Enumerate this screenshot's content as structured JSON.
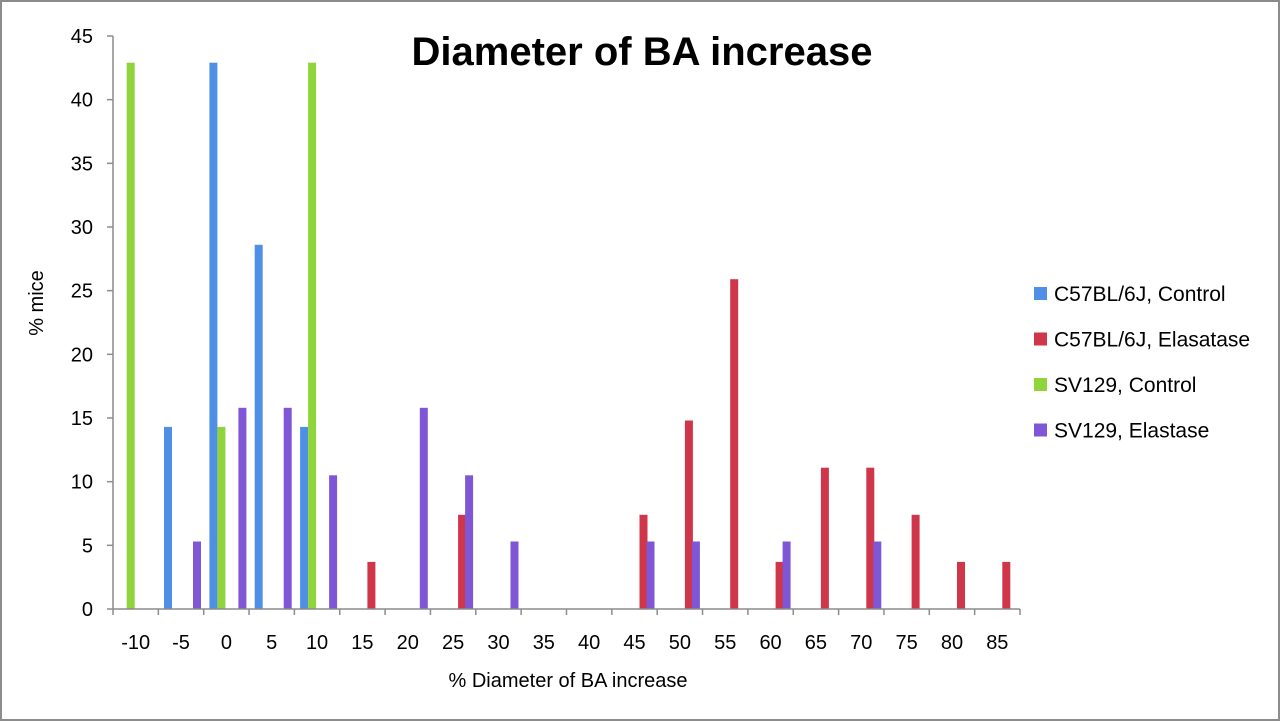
{
  "chart_data": {
    "type": "bar",
    "title": "Diameter of BA increase",
    "xlabel": "% Diameter of BA increase",
    "ylabel": "% mice",
    "ylim": [
      0,
      45
    ],
    "yticks": [
      "0",
      "5",
      "10",
      "15",
      "20",
      "25",
      "30",
      "35",
      "40",
      "45"
    ],
    "categories": [
      "-10",
      "-5",
      "0",
      "5",
      "10",
      "15",
      "20",
      "25",
      "30",
      "35",
      "40",
      "45",
      "50",
      "55",
      "60",
      "65",
      "70",
      "75",
      "80",
      "85"
    ],
    "grid": false,
    "legend_position": "right",
    "series": [
      {
        "name": "C57BL/6J, Control",
        "color": "#4f8fe6",
        "values": [
          0,
          14.3,
          42.9,
          28.6,
          14.3,
          0,
          0,
          0,
          0,
          0,
          0,
          0,
          0,
          0,
          0,
          0,
          0,
          0,
          0,
          0
        ]
      },
      {
        "name": "C57BL/6J, Elasatase",
        "color": "#d0364a",
        "values": [
          0,
          0,
          0,
          0,
          0,
          3.7,
          0,
          7.4,
          0,
          0,
          0,
          7.4,
          14.8,
          25.9,
          3.7,
          11.1,
          11.1,
          7.4,
          3.7,
          3.7
        ]
      },
      {
        "name": "SV129, Control",
        "color": "#8ed43a",
        "values": [
          42.9,
          0,
          14.3,
          0,
          42.9,
          0,
          0,
          0,
          0,
          0,
          0,
          0,
          0,
          0,
          0,
          0,
          0,
          0,
          0,
          0
        ]
      },
      {
        "name": "SV129, Elastase",
        "color": "#7f57d6",
        "values": [
          0,
          5.3,
          15.8,
          15.8,
          10.5,
          0,
          15.8,
          10.5,
          5.3,
          0,
          0,
          5.3,
          5.3,
          0,
          5.3,
          0,
          5.3,
          0,
          0,
          0
        ]
      }
    ]
  }
}
